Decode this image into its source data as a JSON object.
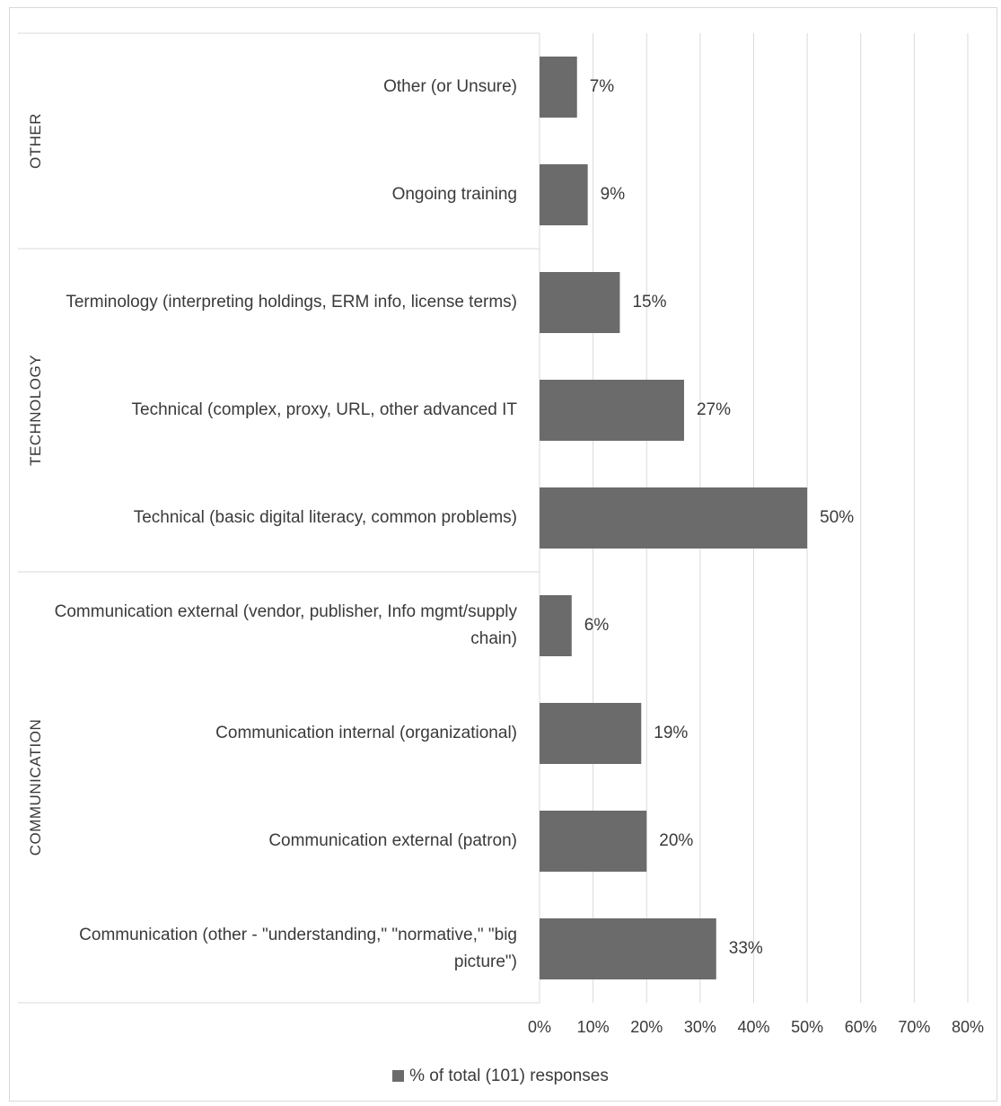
{
  "chart_data": {
    "type": "bar",
    "orientation": "horizontal",
    "groups": [
      {
        "name": "OTHER",
        "categories": [
          "Other (or Unsure)",
          "Ongoing training"
        ]
      },
      {
        "name": "TECHNOLOGY",
        "categories": [
          "Terminology (interpreting holdings, ERM info, license terms)",
          "Technical (complex, proxy, URL, other advanced IT",
          "Technical (basic digital literacy, common problems)"
        ]
      },
      {
        "name": "COMMUNICATION",
        "categories": [
          "Communication external (vendor, publisher, Info mgmt/supply chain)",
          "Communication internal (organizational)",
          "Communication external (patron)",
          "Communication (other - \"understanding,\" \"normative,\" \"big picture\")"
        ]
      }
    ],
    "categories": [
      "Other (or Unsure)",
      "Ongoing training",
      "Terminology (interpreting holdings, ERM info, license terms)",
      "Technical (complex, proxy, URL, other advanced IT",
      "Technical (basic digital literacy, common problems)",
      "Communication external (vendor, publisher, Info mgmt/supply chain)",
      "Communication internal (organizational)",
      "Communication external (patron)",
      "Communication (other - \"understanding,\" \"normative,\" \"big picture\")"
    ],
    "series": [
      {
        "name": "% of total (101) responses",
        "values": [
          7,
          9,
          15,
          27,
          50,
          6,
          19,
          20,
          33
        ]
      }
    ],
    "data_labels": [
      "7%",
      "9%",
      "15%",
      "27%",
      "50%",
      "6%",
      "19%",
      "20%",
      "33%"
    ],
    "x_ticks": [
      "0%",
      "10%",
      "20%",
      "30%",
      "40%",
      "50%",
      "60%",
      "70%",
      "80%"
    ],
    "xlim": [
      0,
      80
    ],
    "grid": true,
    "legend": "bottom",
    "bar_color": "#6b6b6b"
  }
}
